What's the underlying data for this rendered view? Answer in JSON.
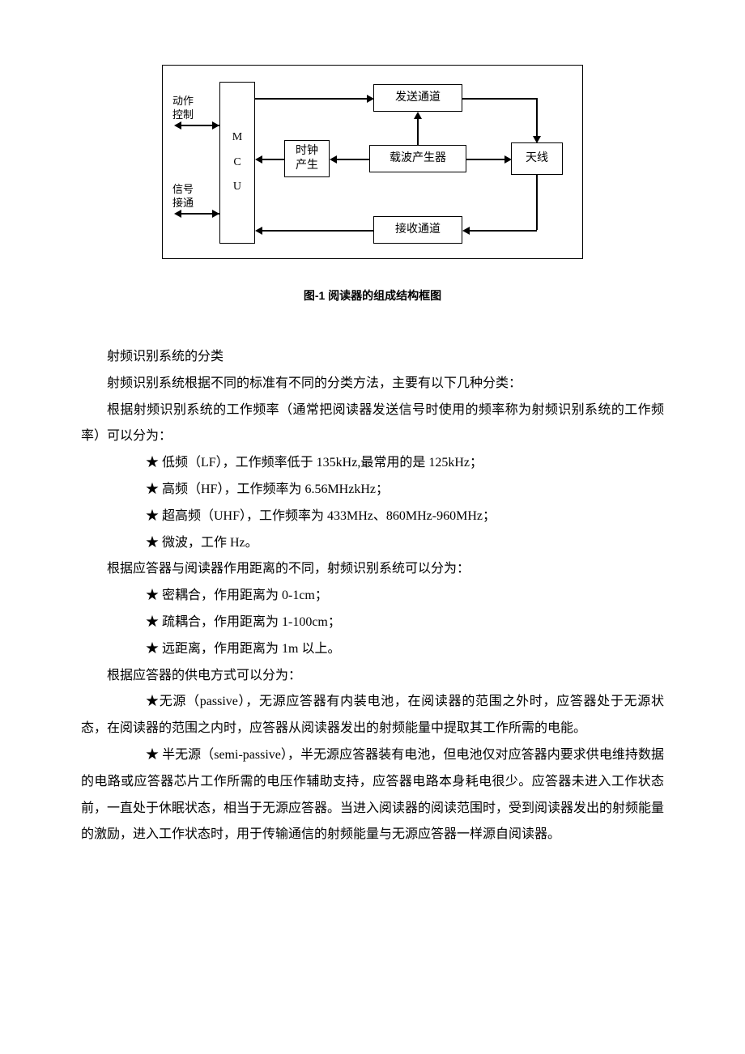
{
  "diagram": {
    "type": "flowchart",
    "border_color": "#000000",
    "background_color": "#ffffff",
    "font_size": 14,
    "nodes": {
      "mcu": "M\nC\nU",
      "clock": "时钟\n产生",
      "tx": "发送通道",
      "carrier": "载波产生器",
      "rx": "接收通道",
      "antenna": "天线"
    },
    "side_labels": {
      "action": "动作\n控制",
      "signal": "信号\n接通"
    }
  },
  "caption": "图-1  阅读器的组成结构框图",
  "body": {
    "p1": "射频识别系统的分类",
    "p2": "射频识别系统根据不同的标准有不同的分类方法，主要有以下几种分类：",
    "p3": "根据射频识别系统的工作频率（通常把阅读器发送信号时使用的频率称为射频识别系统的工作频率）可以分为：",
    "b1": "★ 低频（LF），工作频率低于 135kHz,最常用的是 125kHz；",
    "b2": "★ 高频（HF），工作频率为 6.56MHzkHz；",
    "b3": "★ 超高频（UHF），工作频率为 433MHz、860MHz-960MHz；",
    "b4": "★ 微波，工作 Hz。",
    "p4": "根据应答器与阅读器作用距离的不同，射频识别系统可以分为：",
    "b5": "★ 密耦合，作用距离为 0-1cm；",
    "b6": "★ 疏耦合，作用距离为 1-100cm；",
    "b7": "★ 远距离，作用距离为 1m 以上。",
    "p5": "根据应答器的供电方式可以分为：",
    "b8": "★无源（passive），无源应答器有内装电池，在阅读器的范围之外时，应答器处于无源状态，在阅读器的范围之内时，应答器从阅读器发出的射频能量中提取其工作所需的电能。",
    "b9": "★ 半无源（semi-passive），半无源应答器装有电池，但电池仅对应答器内要求供电维持数据的电路或应答器芯片工作所需的电压作辅助支持，应答器电路本身耗电很少。应答器未进入工作状态前，一直处于休眠状态，相当于无源应答器。当进入阅读器的阅读范围时，受到阅读器发出的射频能量的激励，进入工作状态时，用于传输通信的射频能量与无源应答器一样源自阅读器。"
  },
  "colors": {
    "text": "#000000",
    "bg": "#ffffff",
    "line": "#000000"
  }
}
